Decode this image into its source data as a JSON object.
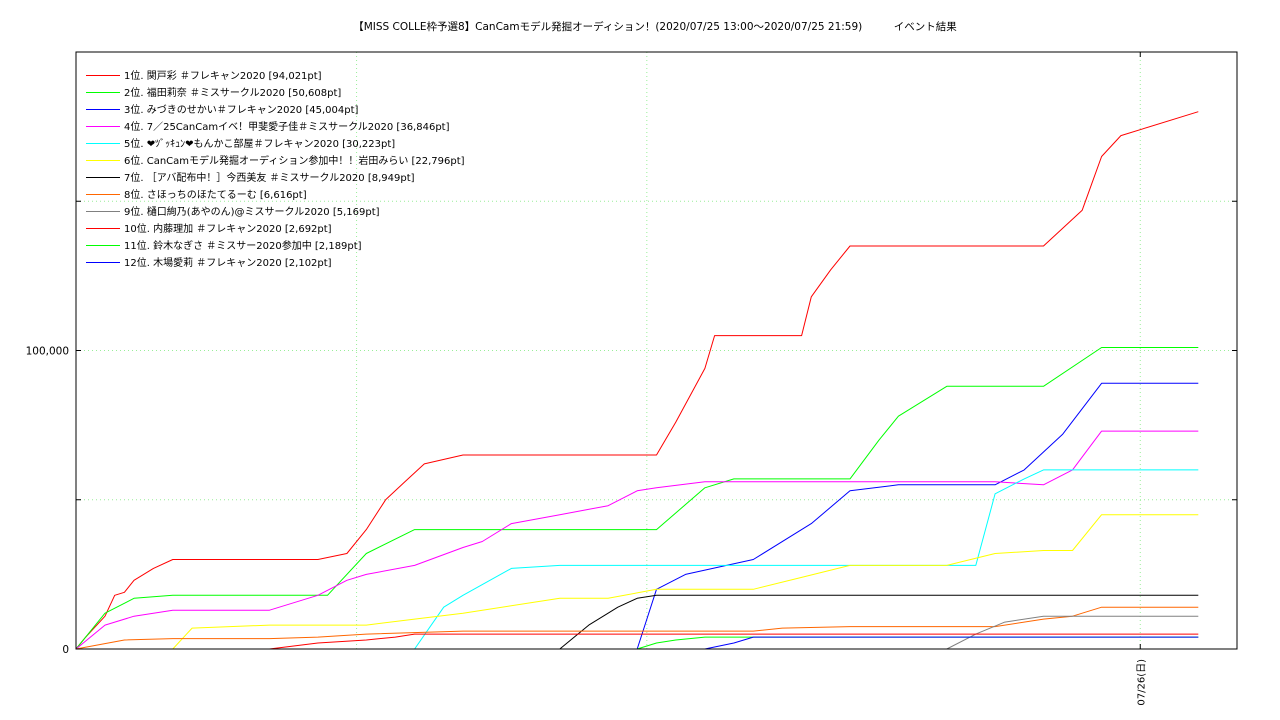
{
  "title": "【MISS COLLE枠予選8】CanCamモデル発掘オーディション！(2020/07/25 13:00〜2020/07/25 21:59)　　　イベント結果",
  "chart_data": {
    "type": "line",
    "title": "【MISS COLLE枠予選8】CanCamモデル発掘オーディション！(2020/07/25 13:00〜2020/07/25 21:59)　　　イベント結果",
    "xlabel": "",
    "ylabel": "",
    "x_axis": "time of day (hours from 07/25 13:00)",
    "xlim": [
      13.0,
      25.0
    ],
    "ylim": [
      0,
      200000
    ],
    "y_ticks": [
      {
        "value": 0,
        "label": "0"
      },
      {
        "value": 100000,
        "label": "100,000"
      }
    ],
    "x_ticks": [
      {
        "value": 24.0,
        "label": "07/26(日)"
      }
    ],
    "grid": true,
    "legend_position": "top-left",
    "series": [
      {
        "name": "1位. 関戸彩 ＃フレキャン2020 [94,021pt]",
        "color": "#ff0000",
        "x": [
          13.0,
          13.1,
          13.3,
          13.4,
          13.5,
          13.6,
          13.8,
          14.0,
          15.0,
          15.5,
          15.8,
          16.0,
          16.2,
          16.4,
          16.6,
          17.0,
          18.0,
          19.0,
          19.2,
          19.5,
          19.6,
          20.2,
          20.5,
          20.6,
          20.8,
          21.0,
          21.3,
          21.5,
          21.6,
          21.75,
          21.9,
          22.0,
          22.1,
          23.0,
          23.4,
          23.5,
          23.6,
          23.8,
          24.6
        ],
        "y": [
          0,
          4000,
          11000,
          18000,
          19000,
          23000,
          27000,
          30000,
          30000,
          30000,
          32000,
          40000,
          50000,
          56000,
          62000,
          65000,
          65000,
          65000,
          76000,
          94000,
          105000,
          105000,
          105000,
          118000,
          127000,
          135000,
          135000,
          135000,
          135000,
          135000,
          135000,
          135000,
          135000,
          135000,
          147000,
          156000,
          165000,
          172000,
          180000
        ]
      },
      {
        "name": "2位. 福田莉奈 ＃ミスサークル2020 [50,608pt]",
        "color": "#00ff00",
        "x": [
          13.0,
          13.3,
          13.6,
          14.0,
          15.0,
          15.6,
          16.0,
          16.5,
          17.0,
          18.0,
          19.0,
          19.5,
          19.8,
          20.0,
          20.5,
          21.0,
          21.3,
          21.5,
          22.0,
          22.5,
          23.0,
          23.6,
          24.6
        ],
        "y": [
          0,
          12000,
          17000,
          18000,
          18000,
          18000,
          32000,
          40000,
          40000,
          40000,
          40000,
          54000,
          57000,
          57000,
          57000,
          57000,
          70000,
          78000,
          88000,
          88000,
          88000,
          101000,
          101000
        ]
      },
      {
        "name": "3位. みづきのせかい＃フレキャン2020 [45,004pt]",
        "color": "#0000ff",
        "x": [
          13.0,
          16.2,
          16.5,
          16.7,
          17.0,
          18.0,
          18.6,
          18.8,
          19.0,
          19.3,
          20.0,
          20.6,
          21.0,
          21.5,
          22.0,
          22.5,
          22.8,
          23.2,
          23.6,
          24.6
        ],
        "y": [
          0,
          0,
          0,
          0,
          0,
          0,
          0,
          0,
          20000,
          25000,
          30000,
          42000,
          53000,
          55000,
          55000,
          55000,
          60000,
          72000,
          89000,
          89000
        ]
      },
      {
        "name": "4位. 7／25CanCamイベ！甲斐愛子佳＃ミスサークル2020 [36,846pt]",
        "color": "#ff00ff",
        "x": [
          13.0,
          13.3,
          13.6,
          14.0,
          15.0,
          15.5,
          15.8,
          16.0,
          16.5,
          17.0,
          17.2,
          17.5,
          18.0,
          18.5,
          18.8,
          19.0,
          19.5,
          20.0,
          20.5,
          21.0,
          21.5,
          22.0,
          22.5,
          23.0,
          23.3,
          23.6,
          24.6
        ],
        "y": [
          0,
          8000,
          11000,
          13000,
          13000,
          18000,
          23000,
          25000,
          28000,
          34000,
          36000,
          42000,
          45000,
          48000,
          53000,
          54000,
          56000,
          56000,
          56000,
          56000,
          56000,
          56000,
          56000,
          55000,
          60000,
          73000,
          73000
        ]
      },
      {
        "name": "5位. ❤ﾂﾞｯｷｭﾝ❤もんかこ部屋＃フレキャン2020 [30,223pt]",
        "color": "#00ffff",
        "x": [
          13.0,
          15.5,
          15.8,
          16.0,
          16.3,
          16.5,
          16.8,
          17.0,
          17.5,
          18.0,
          19.0,
          20.0,
          21.0,
          21.5,
          22.0,
          22.3,
          22.5,
          22.8,
          23.0,
          24.6
        ],
        "y": [
          0,
          0,
          0,
          0,
          0,
          0,
          14000,
          18000,
          27000,
          28000,
          28000,
          28000,
          28000,
          28000,
          28000,
          28000,
          52000,
          57000,
          60000,
          60000
        ]
      },
      {
        "name": "6位. CanCamモデル発掘オーディション参加中！！岩田みらい [22,796pt]",
        "color": "#ffff00",
        "x": [
          13.0,
          13.5,
          14.0,
          14.2,
          15.0,
          15.5,
          16.0,
          16.5,
          17.0,
          18.0,
          18.5,
          19.0,
          19.5,
          20.0,
          20.5,
          21.0,
          21.5,
          22.0,
          22.5,
          23.0,
          23.3,
          23.6,
          24.6
        ],
        "y": [
          0,
          0,
          0,
          7000,
          8000,
          8000,
          8000,
          10000,
          12000,
          17000,
          17000,
          20000,
          20000,
          20000,
          24000,
          28000,
          28000,
          28000,
          32000,
          33000,
          33000,
          45000,
          45000
        ]
      },
      {
        "name": "7位. ［アバ配布中！］今西美友 ＃ミスサークル2020 [8,949pt]",
        "color": "#000000",
        "x": [
          13.0,
          16.0,
          17.0,
          18.0,
          18.3,
          18.5,
          18.6,
          18.8,
          19.0,
          19.5,
          20.0,
          21.0,
          22.0,
          23.0,
          24.6
        ],
        "y": [
          0,
          0,
          0,
          0,
          8000,
          12000,
          14000,
          17000,
          18000,
          18000,
          18000,
          18000,
          18000,
          18000,
          18000
        ]
      },
      {
        "name": "8位. さほっちのほたてるーむ [6,616pt]",
        "color": "#ff6600",
        "x": [
          13.0,
          13.5,
          14.0,
          15.0,
          15.5,
          16.0,
          17.0,
          18.0,
          19.0,
          20.0,
          20.3,
          21.0,
          21.5,
          22.0,
          22.5,
          23.0,
          23.3,
          23.6,
          24.6
        ],
        "y": [
          0,
          3000,
          3500,
          3500,
          4000,
          5000,
          6000,
          6000,
          6000,
          6000,
          7000,
          7500,
          7500,
          7500,
          7500,
          10000,
          11000,
          14000,
          14000
        ]
      },
      {
        "name": "9位. 樋口絢乃(あやのん)@ミスサークル2020 [5,169pt]",
        "color": "#808080",
        "x": [
          13.0,
          14.0,
          15.0,
          16.0,
          17.0,
          18.0,
          19.0,
          20.0,
          21.0,
          21.5,
          21.7,
          22.0,
          22.3,
          22.6,
          23.0,
          24.6
        ],
        "y": [
          0,
          0,
          0,
          0,
          0,
          0,
          0,
          0,
          0,
          0,
          0,
          0,
          5000,
          9000,
          11000,
          11000
        ]
      },
      {
        "name": "10位. 内藤理加 ＃フレキャン2020 [2,692pt]",
        "color": "#ff0000",
        "x": [
          13.0,
          14.0,
          15.0,
          15.5,
          16.0,
          16.3,
          16.5,
          17.0,
          18.0,
          19.0,
          20.0,
          21.0,
          22.0,
          23.0,
          24.6
        ],
        "y": [
          0,
          0,
          0,
          2000,
          3000,
          4000,
          5000,
          5000,
          5000,
          5000,
          5000,
          5000,
          5000,
          5000,
          5000
        ]
      },
      {
        "name": "11位. 鈴木なぎさ ＃ミスサー2020参加中 [2,189pt]",
        "color": "#00ff00",
        "x": [
          13.0,
          16.0,
          17.0,
          18.0,
          18.8,
          19.0,
          19.2,
          19.5,
          20.0,
          21.0,
          22.0,
          23.0,
          24.6
        ],
        "y": [
          0,
          0,
          0,
          0,
          0,
          2000,
          3000,
          4000,
          4000,
          4000,
          4000,
          4000,
          4000
        ]
      },
      {
        "name": "12位. 木場愛莉 ＃フレキャン2020 [2,102pt]",
        "color": "#0000ff",
        "x": [
          13.0,
          16.0,
          17.0,
          18.0,
          19.0,
          19.5,
          19.8,
          20.0,
          21.0,
          22.0,
          23.0,
          24.6
        ],
        "y": [
          0,
          0,
          0,
          0,
          0,
          0,
          2000,
          4000,
          4000,
          4000,
          4000,
          4000
        ]
      }
    ]
  }
}
